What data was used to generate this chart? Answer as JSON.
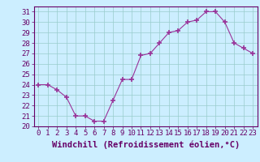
{
  "x": [
    0,
    1,
    2,
    3,
    4,
    5,
    6,
    7,
    8,
    9,
    10,
    11,
    12,
    13,
    14,
    15,
    16,
    17,
    18,
    19,
    20,
    21,
    22,
    23
  ],
  "y": [
    24,
    24,
    23.5,
    22.8,
    21,
    21,
    20.5,
    20.5,
    22.5,
    24.5,
    24.5,
    26.8,
    27,
    28,
    29,
    29.2,
    30,
    30.2,
    31,
    31,
    30,
    28,
    27.5,
    27
  ],
  "line_color": "#993399",
  "marker_color": "#993399",
  "bg_color": "#cceeff",
  "grid_color": "#99cccc",
  "xlabel": "Windchill (Refroidissement éolien,°C)",
  "ylim": [
    20,
    31.5
  ],
  "yticks": [
    20,
    21,
    22,
    23,
    24,
    25,
    26,
    27,
    28,
    29,
    30,
    31
  ],
  "xticks": [
    0,
    1,
    2,
    3,
    4,
    5,
    6,
    7,
    8,
    9,
    10,
    11,
    12,
    13,
    14,
    15,
    16,
    17,
    18,
    19,
    20,
    21,
    22,
    23
  ],
  "tick_label_fontsize": 6.5,
  "xlabel_fontsize": 7.5
}
